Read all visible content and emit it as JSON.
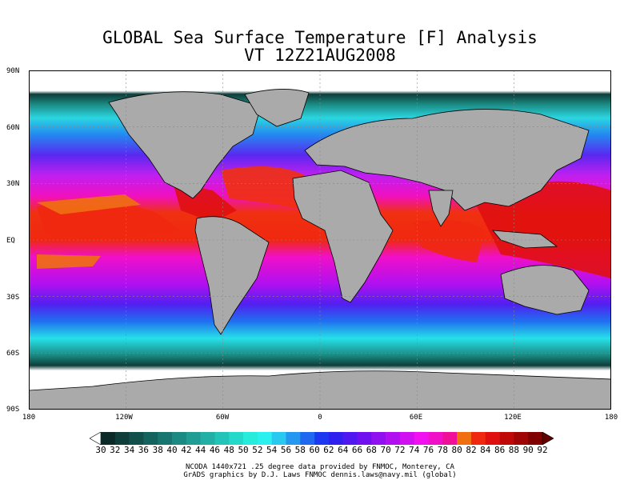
{
  "title": {
    "line1": "GLOBAL Sea Surface Temperature [F] Analysis",
    "line2": "VT 12Z21AUG2008"
  },
  "axes": {
    "lat_labels": [
      "90N",
      "60N",
      "30N",
      "EQ",
      "30S",
      "60S",
      "90S"
    ],
    "lon_labels": [
      "180",
      "120W",
      "60W",
      "0",
      "60E",
      "120E",
      "180"
    ]
  },
  "colorbar": {
    "labels": [
      "30",
      "32",
      "34",
      "36",
      "38",
      "40",
      "42",
      "44",
      "46",
      "48",
      "50",
      "52",
      "54",
      "56",
      "58",
      "60",
      "62",
      "64",
      "66",
      "68",
      "70",
      "72",
      "74",
      "76",
      "78",
      "80",
      "82",
      "84",
      "86",
      "88",
      "90",
      "92"
    ],
    "colors": [
      "#ffffff",
      "#0a2a28",
      "#0e3d3a",
      "#12504c",
      "#15635e",
      "#187670",
      "#1b8a82",
      "#1e9d94",
      "#20b0a6",
      "#22c4b8",
      "#24d8ca",
      "#26ecdc",
      "#2af0f0",
      "#28c8f0",
      "#2498f0",
      "#2068f0",
      "#1c38f0",
      "#3020f0",
      "#5018f0",
      "#7010f0",
      "#9010f0",
      "#b010f0",
      "#d010f0",
      "#f010f0",
      "#f010c8",
      "#f01098",
      "#f07010",
      "#f02810",
      "#e01010",
      "#c00808",
      "#a00404",
      "#800000",
      "#600000"
    ]
  },
  "credits": {
    "line1": "NCODA 1440x721 .25 degree data provided by FNMOC, Monterey, CA",
    "line2": "GrADS graphics by D.J. Laws FNMOC dennis.laws@navy.mil (global)"
  }
}
